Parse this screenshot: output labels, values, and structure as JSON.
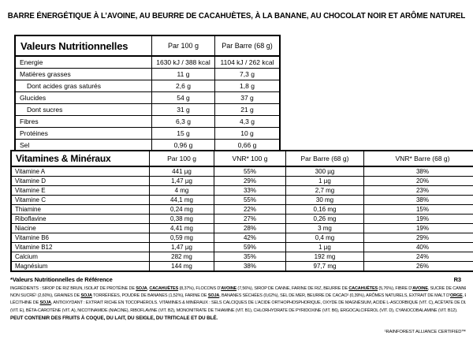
{
  "title": "BARRE ÉNERGÉTIQUE À L’AVOINE, AU BEURRE DE CACAHUÈTES, À LA BANANE, AU CHOCOLAT NOIR ET ARÔME NATUREL",
  "nutrition_table": {
    "header": [
      "Valeurs Nutritionnelles",
      "Par 100 g",
      "Par Barre (68 g)"
    ],
    "rows": [
      {
        "label": "Energie",
        "per_100g": "1630 kJ / 388 kcal",
        "per_bar": "1104 kJ / 262 kcal",
        "indent": false
      },
      {
        "label": "Matières grasses",
        "per_100g": "11 g",
        "per_bar": "7,3 g",
        "indent": false
      },
      {
        "label": "Dont acides gras saturés",
        "per_100g": "2,6 g",
        "per_bar": "1,8 g",
        "indent": true
      },
      {
        "label": "Glucides",
        "per_100g": "54 g",
        "per_bar": "37 g",
        "indent": false
      },
      {
        "label": "Dont sucres",
        "per_100g": "31 g",
        "per_bar": "21 g",
        "indent": true
      },
      {
        "label": "Fibres",
        "per_100g": "6,3 g",
        "per_bar": "4,3 g",
        "indent": false
      },
      {
        "label": "Protéines",
        "per_100g": "15 g",
        "per_bar": "10 g",
        "indent": false
      },
      {
        "label": "Sel",
        "per_100g": "0,96 g",
        "per_bar": "0,66 g",
        "indent": false
      }
    ]
  },
  "vitamins_table": {
    "header": [
      "Vitamines & Minéraux",
      "Par 100 g",
      "VNR* 100 g",
      "Par Barre (68 g)",
      "VNR* Barre (68 g)"
    ],
    "rows": [
      {
        "label": "Vitamine A",
        "per_100g": "441 µg",
        "vnr_100g": "55%",
        "per_bar": "300 µg",
        "vnr_bar": "38%"
      },
      {
        "label": "Vitamine D",
        "per_100g": "1,47 µg",
        "vnr_100g": "29%",
        "per_bar": "1 µg",
        "vnr_bar": "20%"
      },
      {
        "label": "Vitamine E",
        "per_100g": "4 mg",
        "vnr_100g": "33%",
        "per_bar": "2,7 mg",
        "vnr_bar": "23%"
      },
      {
        "label": "Vitamine C",
        "per_100g": "44,1 mg",
        "vnr_100g": "55%",
        "per_bar": "30 mg",
        "vnr_bar": "38%"
      },
      {
        "label": "Thiamine",
        "per_100g": "0,24 mg",
        "vnr_100g": "22%",
        "per_bar": "0,16 mg",
        "vnr_bar": "15%"
      },
      {
        "label": "Riboflavine",
        "per_100g": "0,38 mg",
        "vnr_100g": "27%",
        "per_bar": "0,26 mg",
        "vnr_bar": "19%"
      },
      {
        "label": "Niacine",
        "per_100g": "4,41 mg",
        "vnr_100g": "28%",
        "per_bar": "3 mg",
        "vnr_bar": "19%"
      },
      {
        "label": "Vitamine B6",
        "per_100g": "0,59 mg",
        "vnr_100g": "42%",
        "per_bar": "0,4 mg",
        "vnr_bar": "29%"
      },
      {
        "label": "Vitamine B12",
        "per_100g": "1,47 µg",
        "vnr_100g": "59%",
        "per_bar": "1 µg",
        "vnr_bar": "40%"
      },
      {
        "label": "Calcium",
        "per_100g": "282 mg",
        "vnr_100g": "35%",
        "per_bar": "192 mg",
        "vnr_bar": "24%"
      },
      {
        "label": "Magnésium",
        "per_100g": "144 mg",
        "vnr_100g": "38%",
        "per_bar": "97,7 mg",
        "vnr_bar": "26%"
      }
    ]
  },
  "footnote": "*Valeurs Nutritionnelles de Référence",
  "code": "R3",
  "ingredients_lines": [
    [
      {
        "text": "INGRÉDIENTS : SIROP DE RIZ BRUN, ISOLAT DE PROTÉINE DE "
      },
      {
        "text": "SOJA",
        "allergen": true
      },
      {
        "text": ", "
      },
      {
        "text": "CACAHUÈTES",
        "allergen": true
      },
      {
        "text": " (8,37%), FLOCONS D’"
      },
      {
        "text": "AVOINE",
        "allergen": true
      },
      {
        "text": " (7,56%), SIROP DE CANNE, FARINE DE RIZ, BEURRE DE "
      },
      {
        "text": "CACAHUÈTES",
        "allergen": true
      },
      {
        "text": " (5,76%), FIBRE D’"
      },
      {
        "text": "AVOINE",
        "allergen": true
      },
      {
        "text": ", SUCRE DE CANNE, CHOCOLAT"
      }
    ],
    [
      {
        "text": "NON SUCRÉ¹ (2,60%), GRAINES DE "
      },
      {
        "text": "SOJA",
        "allergen": true
      },
      {
        "text": " TORRÉFIÉES, POUDRE DE BANANES (1,52%), FARINE DE "
      },
      {
        "text": "SOJA",
        "allergen": true
      },
      {
        "text": ", BANANES SÉCHÉES (0,62%), SEL DE MER, BEURRE DE CACAO¹ (0,39%), ARÔMES NATURELS, EXTRAIT DE MALT D’"
      },
      {
        "text": "ORGE",
        "allergen": true
      },
      {
        "text": ", ÉMULSIFIANT :"
      }
    ],
    [
      {
        "text": "LÉCITHINE DE "
      },
      {
        "text": "SOJA",
        "allergen": true
      },
      {
        "text": ", ANTIOXYDANT : EXTRAIT RICHE EN TOCOPHÉROLS. VITAMINES & MINÉRAUX : SELS CALCIQUES DE L’ACIDE ORTHOPHOSPHORIQUE, OXYDE DE MAGNÉSIUM, ACIDE L-ASCORBIQUE (VIT. C), ACÉTATE DE DL-ALPHA TOCOPHERYLE"
      }
    ],
    [
      {
        "text": "(VIT. E), BÊTA-CAROTÈNE (VIT. A), NICOTINAMIDE (NIACINE), RIBOFLAVINE (VIT. B2), MONONITRATE DE THIAMINE (VIT. B1), CHLORHYDRATE DE PYRIDOXINE (VIT. B6), ERGOCALCIFÉROL (VIT. D), CYANOCOBALAMINE (VIT. B12)."
      }
    ]
  ],
  "allergen_warning": "PEUT CONTENIR DES FRUITS À COQUE, DU LAIT, DU SEIGLE, DU TRITICALE ET DU BLÉ.",
  "certification": "¹RAINFOREST ALLIANCE CERTIFIED™"
}
